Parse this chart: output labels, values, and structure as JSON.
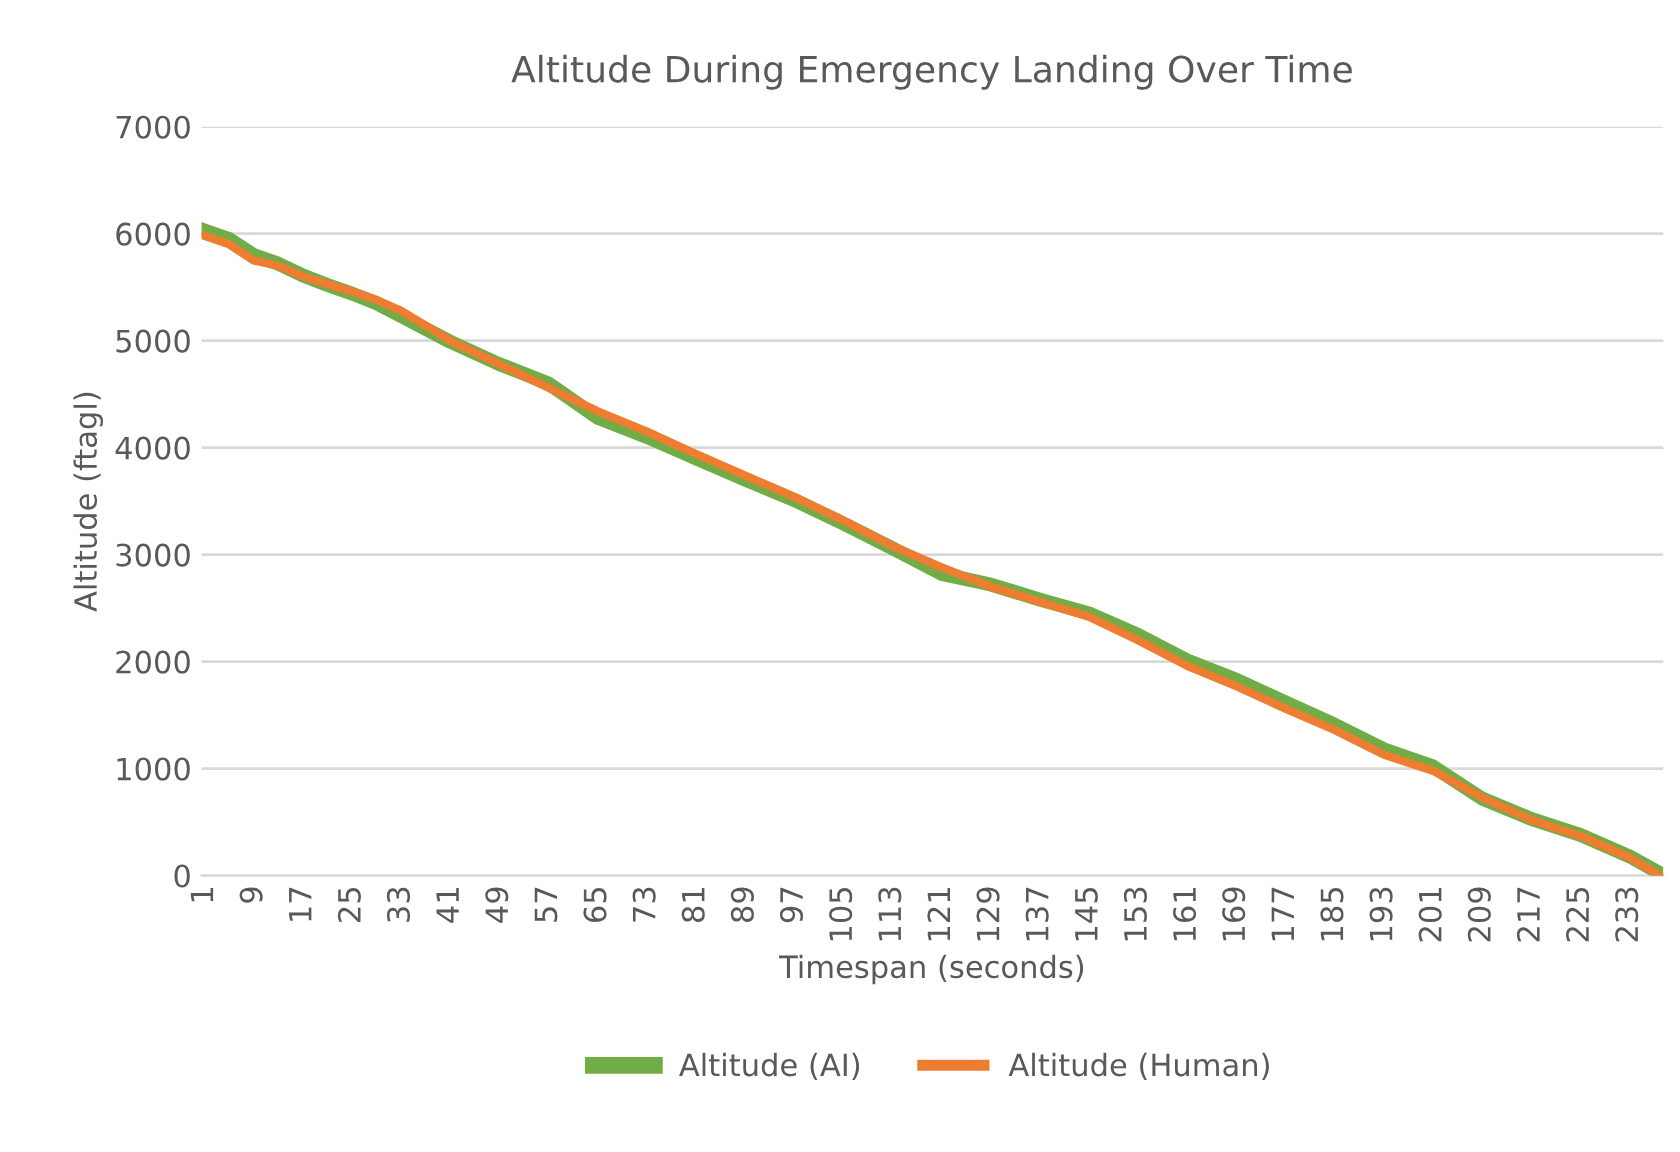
{
  "chart_data": {
    "type": "line",
    "title": "Altitude During Emergency Landing Over Time",
    "xlabel": "Timespan (seconds)",
    "ylabel": "Altitude (ftagl)",
    "xlim": [
      0.5,
      238.5
    ],
    "xticks": [
      1,
      9,
      17,
      25,
      33,
      41,
      49,
      57,
      65,
      73,
      81,
      89,
      97,
      105,
      113,
      121,
      129,
      137,
      145,
      153,
      161,
      169,
      177,
      185,
      193,
      201,
      209,
      217,
      225,
      233
    ],
    "ylim": [
      0,
      7000
    ],
    "yticks": [
      0,
      1000,
      2000,
      3000,
      4000,
      5000,
      6000,
      7000
    ],
    "grid": "y",
    "legend": "bottom",
    "marker": "none",
    "line_style": "solid",
    "series": [
      {
        "name": "Altitude (AI)",
        "color": "#70ad47",
        "x": [
          1,
          5,
          9,
          13,
          17,
          21,
          25,
          29,
          33,
          41,
          49,
          57,
          65,
          73,
          81,
          89,
          97,
          105,
          113,
          121,
          129,
          137,
          145,
          153,
          161,
          169,
          177,
          185,
          193,
          201,
          209,
          217,
          225,
          233,
          238
        ],
        "values": [
          6030,
          5950,
          5800,
          5720,
          5610,
          5520,
          5440,
          5350,
          5230,
          4990,
          4780,
          4600,
          4280,
          4100,
          3900,
          3700,
          3510,
          3290,
          3060,
          2820,
          2720,
          2580,
          2450,
          2250,
          2010,
          1830,
          1620,
          1410,
          1180,
          1020,
          720,
          530,
          380,
          180,
          20
        ]
      },
      {
        "name": "Altitude (Human)",
        "color": "#ed7d31",
        "x": [
          1,
          5,
          9,
          13,
          17,
          21,
          25,
          29,
          33,
          41,
          49,
          57,
          65,
          73,
          81,
          89,
          97,
          105,
          113,
          121,
          129,
          137,
          145,
          153,
          161,
          169,
          177,
          185,
          193,
          201,
          209,
          217,
          225,
          233,
          238
        ],
        "values": [
          5980,
          5900,
          5750,
          5700,
          5600,
          5530,
          5460,
          5380,
          5280,
          5000,
          4780,
          4560,
          4340,
          4150,
          3940,
          3740,
          3540,
          3320,
          3080,
          2880,
          2700,
          2560,
          2420,
          2200,
          1960,
          1770,
          1560,
          1360,
          1130,
          980,
          730,
          520,
          370,
          170,
          0
        ]
      }
    ]
  }
}
